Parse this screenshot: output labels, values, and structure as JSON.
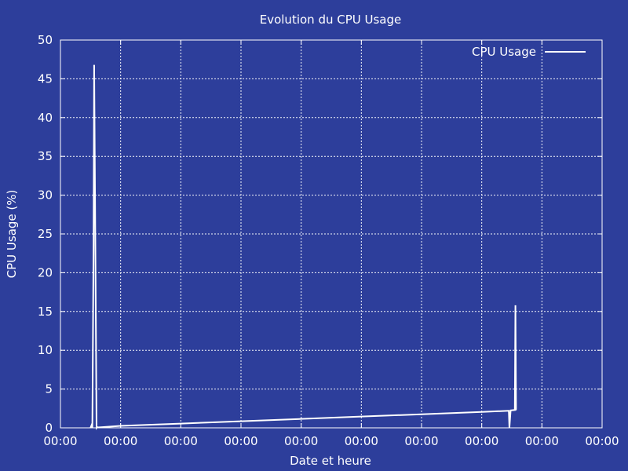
{
  "colors": {
    "background": "#2d3e9b",
    "foreground": "#ffffff"
  },
  "chart_data": {
    "type": "line",
    "title": "Evolution du CPU Usage",
    "xlabel": "Date et heure",
    "ylabel": "CPU Usage (%)",
    "ylim": [
      0,
      50
    ],
    "yticks": [
      0,
      5,
      10,
      15,
      20,
      25,
      30,
      35,
      40,
      45,
      50
    ],
    "xticks": [
      "00:00",
      "00:00",
      "00:00",
      "00:00",
      "00:00",
      "00:00",
      "00:00",
      "00:00",
      "00:00",
      "00:00"
    ],
    "grid": true,
    "legend_position": "top-right",
    "series": [
      {
        "name": "CPU Usage",
        "color": "#ffffff",
        "x": [
          0.5,
          0.52,
          0.53,
          0.55,
          0.56,
          0.58,
          0.6,
          0.61,
          0.62,
          1.0,
          2.0,
          3.0,
          4.0,
          5.0,
          6.0,
          7.0,
          7.45,
          7.46,
          7.48,
          7.55,
          7.56,
          7.57,
          7.58
        ],
        "y": [
          0,
          0.4,
          0,
          23.4,
          46.8,
          23.5,
          0,
          0.1,
          0.05,
          0.25,
          0.55,
          0.85,
          1.15,
          1.45,
          1.75,
          2.05,
          2.2,
          0,
          2.25,
          2.3,
          15.8,
          2.35,
          2.35
        ]
      }
    ]
  }
}
